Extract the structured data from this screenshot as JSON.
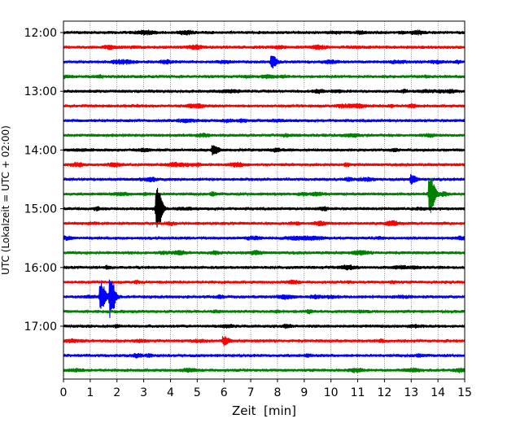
{
  "chart_data": {
    "type": "line",
    "title": "",
    "xlabel": "Zeit  [min]",
    "ylabel": "UTC (Lokalzeit = UTC + 02:00)",
    "xlim": [
      0,
      15
    ],
    "x_ticks": [
      0,
      1,
      2,
      3,
      4,
      5,
      6,
      7,
      8,
      9,
      10,
      11,
      12,
      13,
      14,
      15
    ],
    "x_tick_labels": [
      "0",
      "1",
      "2",
      "3",
      "4",
      "5",
      "6",
      "7",
      "8",
      "9",
      "10",
      "11",
      "12",
      "13",
      "14",
      "15"
    ],
    "y_tick_labels": [
      "12:00",
      "13:00",
      "14:00",
      "15:00",
      "16:00",
      "17:00"
    ],
    "y_tick_rows": [
      0,
      4,
      8,
      12,
      16,
      20
    ],
    "grid": {
      "vertical": true,
      "style": "dotted"
    },
    "colors": [
      "#000000",
      "#ff0000",
      "#0000ff",
      "#008000"
    ],
    "traces": [
      {
        "start": "12:00",
        "color": "#000000",
        "events": []
      },
      {
        "start": "12:15",
        "color": "#ff0000",
        "events": []
      },
      {
        "start": "12:30",
        "color": "#0000ff",
        "events": [
          {
            "t": 7.8,
            "amp": 0.45
          }
        ]
      },
      {
        "start": "12:45",
        "color": "#008000",
        "events": []
      },
      {
        "start": "13:00",
        "color": "#000000",
        "events": []
      },
      {
        "start": "13:15",
        "color": "#ff0000",
        "events": []
      },
      {
        "start": "13:30",
        "color": "#0000ff",
        "events": []
      },
      {
        "start": "13:45",
        "color": "#008000",
        "events": []
      },
      {
        "start": "14:00",
        "color": "#000000",
        "events": [
          {
            "t": 5.6,
            "amp": 0.35
          }
        ]
      },
      {
        "start": "14:15",
        "color": "#ff0000",
        "events": []
      },
      {
        "start": "14:30",
        "color": "#0000ff",
        "events": [
          {
            "t": 13.0,
            "amp": 0.3
          }
        ]
      },
      {
        "start": "14:45",
        "color": "#008000",
        "events": [
          {
            "t": 13.7,
            "amp": 1.4
          }
        ]
      },
      {
        "start": "15:00",
        "color": "#000000",
        "events": [
          {
            "t": 3.5,
            "amp": 1.6
          }
        ]
      },
      {
        "start": "15:15",
        "color": "#ff0000",
        "events": []
      },
      {
        "start": "15:30",
        "color": "#0000ff",
        "events": []
      },
      {
        "start": "15:45",
        "color": "#008000",
        "events": []
      },
      {
        "start": "16:00",
        "color": "#000000",
        "events": []
      },
      {
        "start": "16:15",
        "color": "#ff0000",
        "events": []
      },
      {
        "start": "16:30",
        "color": "#0000ff",
        "events": [
          {
            "t": 1.4,
            "amp": 1.0
          },
          {
            "t": 1.75,
            "amp": 1.5
          }
        ]
      },
      {
        "start": "16:45",
        "color": "#008000",
        "events": []
      },
      {
        "start": "17:00",
        "color": "#000000",
        "events": []
      },
      {
        "start": "17:15",
        "color": "#ff0000",
        "events": [
          {
            "t": 6.0,
            "amp": 0.3
          }
        ]
      },
      {
        "start": "17:30",
        "color": "#0000ff",
        "events": []
      },
      {
        "start": "17:45",
        "color": "#008000",
        "events": []
      }
    ]
  }
}
